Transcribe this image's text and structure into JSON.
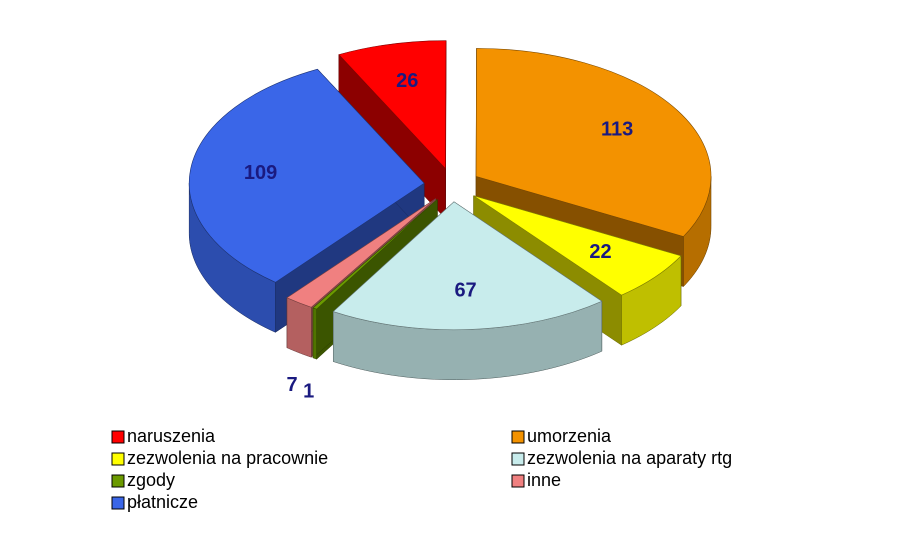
{
  "chart_data": {
    "type": "pie3d",
    "categories": [
      "naruszenia",
      "umorzenia",
      "zezwolenia na pracownie",
      "zezwolenia na aparaty rtg",
      "zgody",
      "inne",
      "płatnicze"
    ],
    "values": [
      26,
      113,
      22,
      67,
      1,
      7,
      109
    ],
    "colors": [
      "#ff0000",
      "#f39200",
      "#ffff00",
      "#c8ecec",
      "#6b9a00",
      "#f08080",
      "#3a66e8"
    ]
  }
}
